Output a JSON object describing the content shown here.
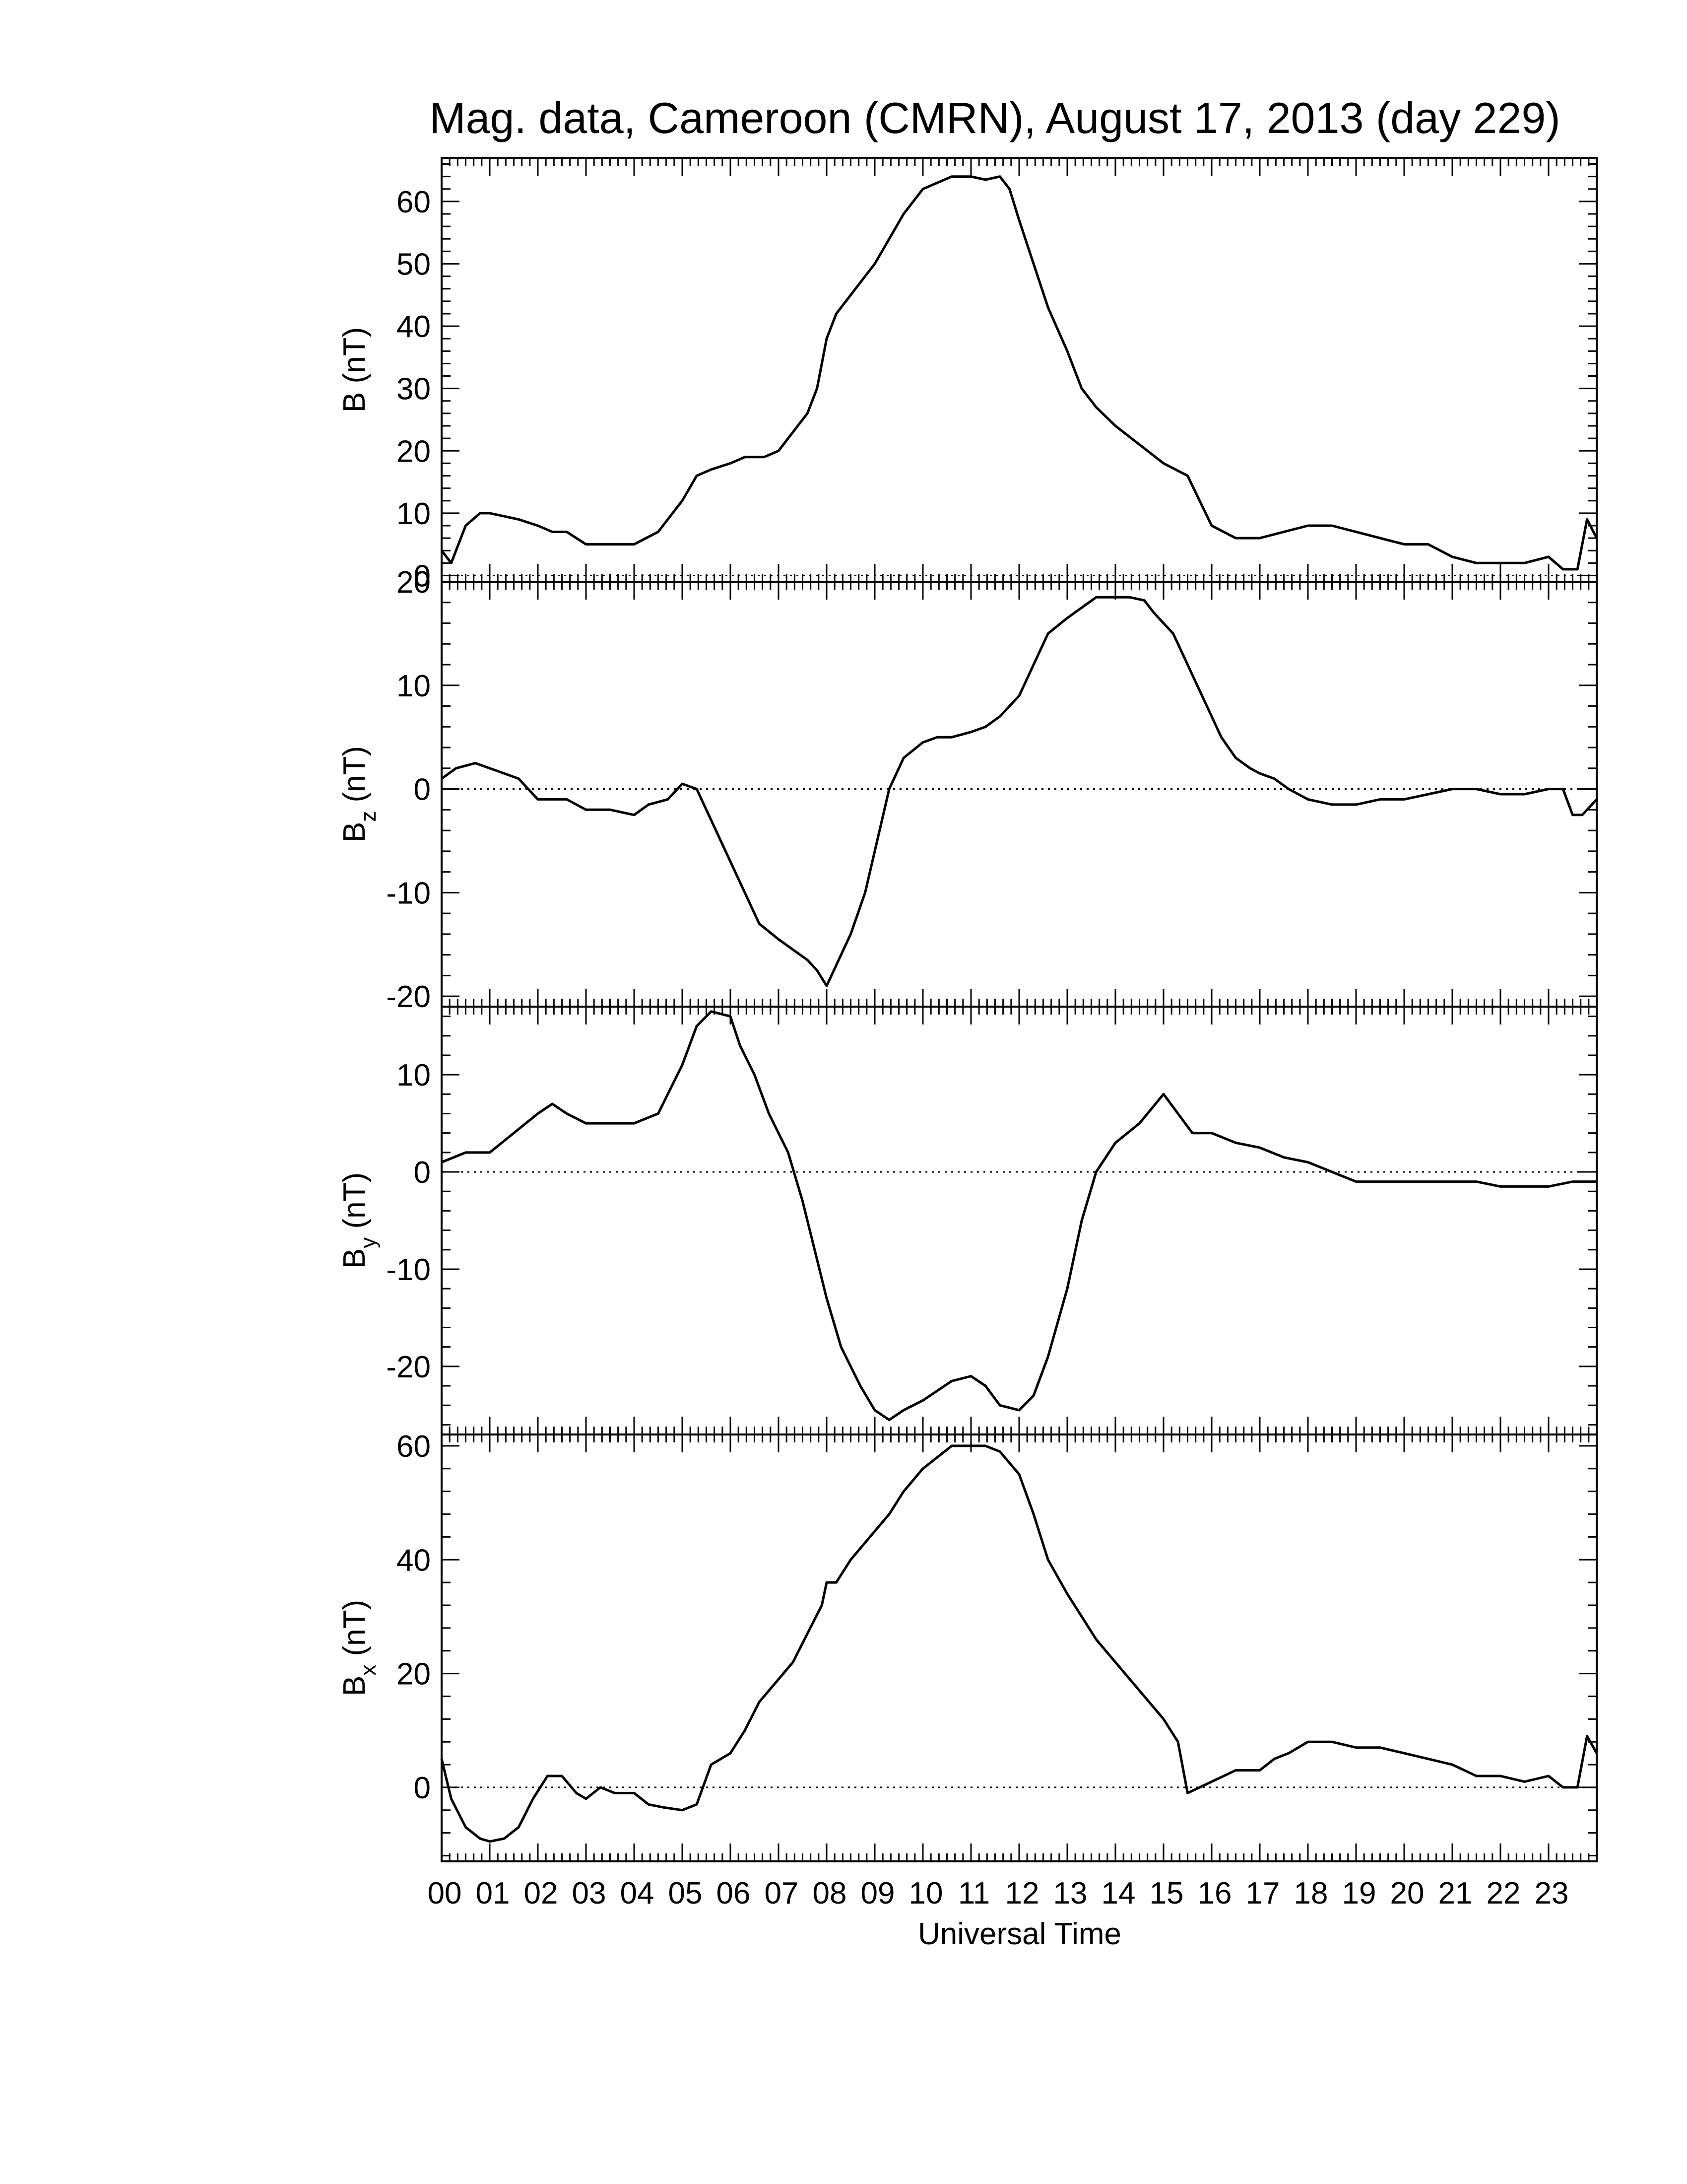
{
  "title": "Mag. data, Cameroon (CMRN), August 17, 2013 (day 229)",
  "xlabel": "Universal Time",
  "x_tick_labels": [
    "00",
    "01",
    "02",
    "03",
    "04",
    "05",
    "06",
    "07",
    "08",
    "09",
    "10",
    "11",
    "12",
    "13",
    "14",
    "15",
    "16",
    "17",
    "18",
    "19",
    "20",
    "21",
    "22",
    "23"
  ],
  "panels": [
    {
      "ylabel_main": "B",
      "ylabel_sub": "",
      "ylabel_unit": " (nT)",
      "ytick_labels": [
        "0",
        "10",
        "20",
        "30",
        "40",
        "50",
        "60"
      ]
    },
    {
      "ylabel_main": "B",
      "ylabel_sub": "z",
      "ylabel_unit": " (nT)",
      "ytick_labels": [
        "-20",
        "-10",
        "0",
        "10",
        "20"
      ]
    },
    {
      "ylabel_main": "B",
      "ylabel_sub": "y",
      "ylabel_unit": " (nT)",
      "ytick_labels": [
        "-20",
        "-10",
        "0",
        "10"
      ]
    },
    {
      "ylabel_main": "B",
      "ylabel_sub": "x",
      "ylabel_unit": " (nT)",
      "ytick_labels": [
        "0",
        "20",
        "40",
        "60"
      ]
    }
  ],
  "chart_data": [
    {
      "type": "line",
      "ylabel": "B (nT)",
      "xlim": [
        0,
        24
      ],
      "ylim": [
        -1,
        67
      ],
      "yticks": [
        0,
        10,
        20,
        30,
        40,
        50,
        60
      ],
      "zero_line": true,
      "line_color": "#000000",
      "x": [
        0,
        0.2,
        0.5,
        0.8,
        1.0,
        1.3,
        1.6,
        2.0,
        2.3,
        2.6,
        3.0,
        3.5,
        4.0,
        4.5,
        5.0,
        5.3,
        5.6,
        6.0,
        6.3,
        6.7,
        7.0,
        7.2,
        7.4,
        7.6,
        7.8,
        8.0,
        8.2,
        8.5,
        8.8,
        9.0,
        9.3,
        9.6,
        10.0,
        10.3,
        10.6,
        11.0,
        11.3,
        11.6,
        11.8,
        12.0,
        12.3,
        12.6,
        13.0,
        13.3,
        13.6,
        14.0,
        14.5,
        15.0,
        15.5,
        16.0,
        16.5,
        17.0,
        17.5,
        18.0,
        18.5,
        19.0,
        19.5,
        20.0,
        20.5,
        21.0,
        21.5,
        22.0,
        22.5,
        23.0,
        23.3,
        23.6,
        23.8,
        24.0
      ],
      "y": [
        4,
        2,
        8,
        10,
        10,
        9.5,
        9,
        8,
        7,
        7,
        5,
        5,
        5,
        7,
        12,
        16,
        17,
        18,
        19,
        19,
        20,
        22,
        24,
        26,
        30,
        38,
        42,
        45,
        48,
        50,
        54,
        58,
        62,
        63,
        64,
        64,
        63.5,
        64,
        62,
        57,
        50,
        43,
        36,
        30,
        27,
        24,
        21,
        18,
        16,
        8,
        6,
        6,
        7,
        8,
        8,
        7,
        6,
        5,
        5,
        3,
        2,
        2,
        2,
        3,
        1,
        1,
        9,
        6
      ]
    },
    {
      "type": "line",
      "ylabel": "Bz (nT)",
      "xlim": [
        0,
        24
      ],
      "ylim": [
        -21,
        20
      ],
      "yticks": [
        -20,
        -10,
        0,
        10,
        20
      ],
      "zero_line": true,
      "line_color": "#000000",
      "x": [
        0,
        0.3,
        0.7,
        1.0,
        1.3,
        1.6,
        2.0,
        2.3,
        2.6,
        3.0,
        3.5,
        4.0,
        4.3,
        4.7,
        5.0,
        5.3,
        5.6,
        6.0,
        6.3,
        6.6,
        7.0,
        7.3,
        7.6,
        7.8,
        8.0,
        8.2,
        8.5,
        8.8,
        9.0,
        9.3,
        9.6,
        10.0,
        10.3,
        10.6,
        11.0,
        11.3,
        11.6,
        12.0,
        12.3,
        12.6,
        13.0,
        13.3,
        13.6,
        14.0,
        14.3,
        14.6,
        14.8,
        15.0,
        15.2,
        15.4,
        15.6,
        15.9,
        16.2,
        16.5,
        16.8,
        17.0,
        17.3,
        17.6,
        18.0,
        18.5,
        19.0,
        19.5,
        20.0,
        20.5,
        21.0,
        21.5,
        22.0,
        22.5,
        23.0,
        23.3,
        23.5,
        23.7,
        24.0
      ],
      "y": [
        1,
        2,
        2.5,
        2,
        1.5,
        1,
        -1,
        -1,
        -1,
        -2,
        -2,
        -2.5,
        -1.5,
        -1,
        0.5,
        0,
        -3,
        -7,
        -10,
        -13,
        -14.5,
        -15.5,
        -16.5,
        -17.5,
        -19,
        -17,
        -14,
        -10,
        -6,
        0,
        3,
        4.5,
        5,
        5,
        5.5,
        6,
        7,
        9,
        12,
        15,
        16.5,
        17.5,
        18.5,
        18.5,
        18.5,
        18.2,
        17,
        16,
        15,
        13,
        11,
        8,
        5,
        3,
        2,
        1.5,
        1,
        0,
        -1,
        -1.5,
        -1.5,
        -1,
        -1,
        -0.5,
        0,
        0,
        -0.5,
        -0.5,
        0,
        0,
        -2.5,
        -2.5,
        -1
      ]
    },
    {
      "type": "line",
      "ylabel": "By (nT)",
      "xlim": [
        0,
        24
      ],
      "ylim": [
        -27,
        17
      ],
      "yticks": [
        -20,
        -10,
        0,
        10
      ],
      "zero_line": true,
      "line_color": "#000000",
      "x": [
        0,
        0.5,
        1.0,
        1.5,
        2.0,
        2.3,
        2.6,
        3.0,
        3.5,
        4.0,
        4.5,
        5.0,
        5.3,
        5.6,
        6.0,
        6.2,
        6.5,
        6.8,
        7.2,
        7.5,
        8.0,
        8.3,
        8.7,
        9.0,
        9.3,
        9.6,
        10.0,
        10.3,
        10.6,
        11.0,
        11.3,
        11.6,
        12.0,
        12.3,
        12.6,
        13.0,
        13.3,
        13.6,
        14.0,
        14.5,
        15.0,
        15.3,
        15.6,
        16.0,
        16.5,
        17.0,
        17.5,
        18.0,
        18.5,
        19.0,
        19.5,
        20.0,
        20.5,
        21.0,
        21.5,
        22.0,
        22.5,
        23.0,
        23.5,
        24.0
      ],
      "y": [
        1,
        2,
        2,
        4,
        6,
        7,
        6,
        5,
        5,
        5,
        6,
        11,
        15,
        16.5,
        16,
        13,
        10,
        6,
        2,
        -3,
        -13,
        -18,
        -22,
        -24.5,
        -25.5,
        -24.5,
        -23.5,
        -22.5,
        -21.5,
        -21,
        -22,
        -24,
        -24.5,
        -23,
        -19,
        -12,
        -5,
        0,
        3,
        5,
        8,
        6,
        4,
        4,
        3,
        2.5,
        1.5,
        1,
        0,
        -1,
        -1,
        -1,
        -1,
        -1,
        -1,
        -1.5,
        -1.5,
        -1.5,
        -1,
        -1
      ]
    },
    {
      "type": "line",
      "ylabel": "Bx (nT)",
      "xlim": [
        0,
        24
      ],
      "ylim": [
        -13,
        62
      ],
      "yticks": [
        0,
        20,
        40,
        60
      ],
      "zero_line": true,
      "line_color": "#000000",
      "x": [
        0,
        0.2,
        0.5,
        0.8,
        1.0,
        1.3,
        1.6,
        1.9,
        2.2,
        2.5,
        2.8,
        3.0,
        3.3,
        3.6,
        4.0,
        4.3,
        4.6,
        5.0,
        5.3,
        5.6,
        6.0,
        6.3,
        6.6,
        7.0,
        7.3,
        7.6,
        7.9,
        8.0,
        8.2,
        8.5,
        8.8,
        9.0,
        9.3,
        9.6,
        10.0,
        10.3,
        10.6,
        11.0,
        11.3,
        11.6,
        12.0,
        12.3,
        12.6,
        13.0,
        13.3,
        13.6,
        14.0,
        14.3,
        14.6,
        15.0,
        15.3,
        15.5,
        16.0,
        16.5,
        17.0,
        17.3,
        17.6,
        18.0,
        18.5,
        19.0,
        19.5,
        20.0,
        20.5,
        21.0,
        21.5,
        22.0,
        22.5,
        23.0,
        23.3,
        23.6,
        23.8,
        24.0
      ],
      "y": [
        5,
        -2,
        -7,
        -9,
        -9.5,
        -9,
        -7,
        -2,
        2,
        2,
        -1,
        -2,
        0,
        -1,
        -1,
        -3,
        -3.5,
        -4,
        -3,
        4,
        6,
        10,
        15,
        19,
        22,
        27,
        32,
        36,
        36,
        40,
        43,
        45,
        48,
        52,
        56,
        58,
        60,
        60,
        60,
        59,
        55,
        48,
        40,
        34,
        30,
        26,
        22,
        19,
        16,
        12,
        8,
        -1,
        1,
        3,
        3,
        5,
        6,
        8,
        8,
        7,
        7,
        6,
        5,
        4,
        2,
        2,
        1,
        2,
        0,
        0,
        9,
        6
      ]
    }
  ]
}
